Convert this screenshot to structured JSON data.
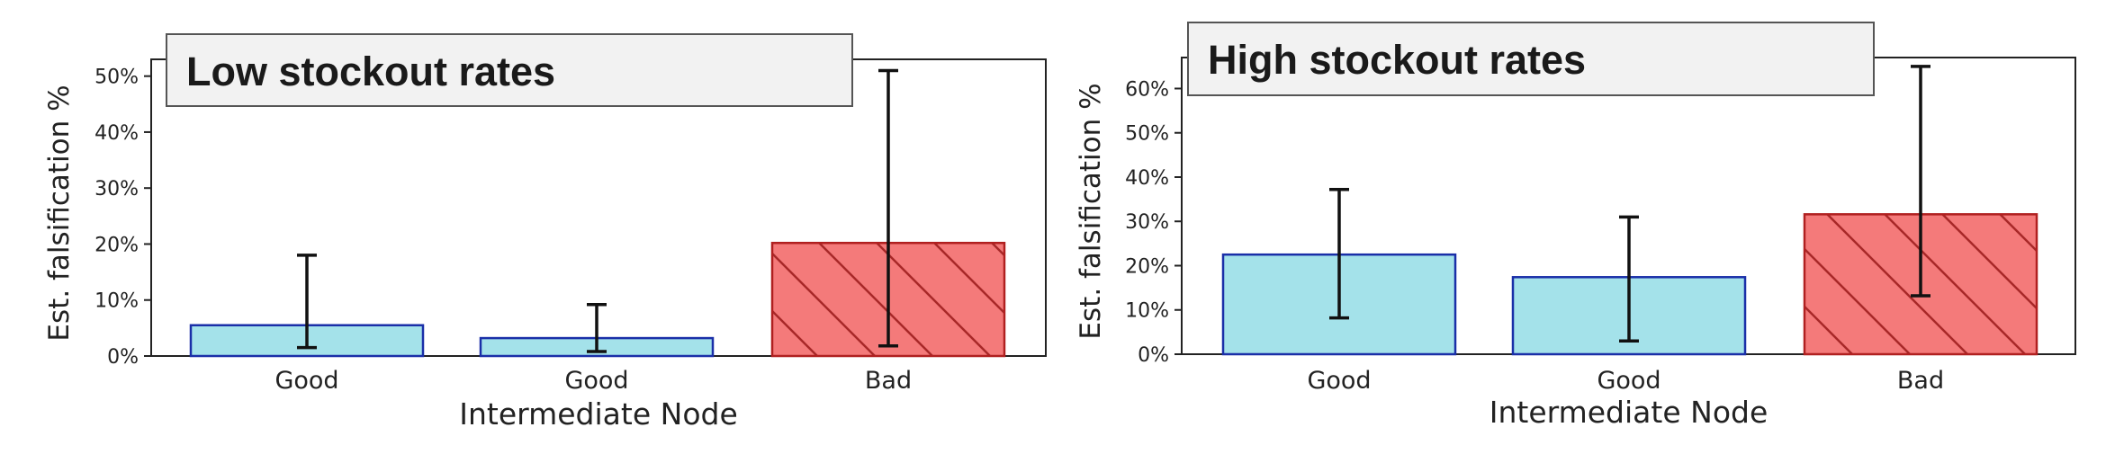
{
  "colors": {
    "good_fill": "#a4e2ea",
    "good_stroke": "#1a2fa8",
    "bad_fill": "#f47a7a",
    "bad_stroke": "#b02020",
    "hatch": "#a82828",
    "errorbar": "#111111",
    "title_bg": "#f2f2f2"
  },
  "chart_data": [
    {
      "type": "bar",
      "title": "Low stockout rates",
      "xlabel": "Intermediate Node",
      "ylabel": "Est. falsification %",
      "categories": [
        "Good",
        "Good",
        "Bad"
      ],
      "values": [
        5.5,
        3.2,
        20.2
      ],
      "error_low": [
        1.5,
        0.8,
        1.8
      ],
      "error_high": [
        18.0,
        9.2,
        51.0
      ],
      "yticks": [
        "0%",
        "10%",
        "20%",
        "30%",
        "40%",
        "50%"
      ],
      "ylim": [
        0,
        53
      ],
      "grid": false
    },
    {
      "type": "bar",
      "title": "High stockout rates",
      "xlabel": "Intermediate Node",
      "ylabel": "Est. falsification %",
      "categories": [
        "Good",
        "Good",
        "Bad"
      ],
      "values": [
        22.5,
        17.4,
        31.6
      ],
      "error_low": [
        8.2,
        3.0,
        13.2
      ],
      "error_high": [
        37.2,
        31.0,
        65.0
      ],
      "yticks": [
        "0%",
        "10%",
        "20%",
        "30%",
        "40%",
        "50%",
        "60%"
      ],
      "ylim": [
        0,
        67
      ],
      "grid": false
    }
  ]
}
